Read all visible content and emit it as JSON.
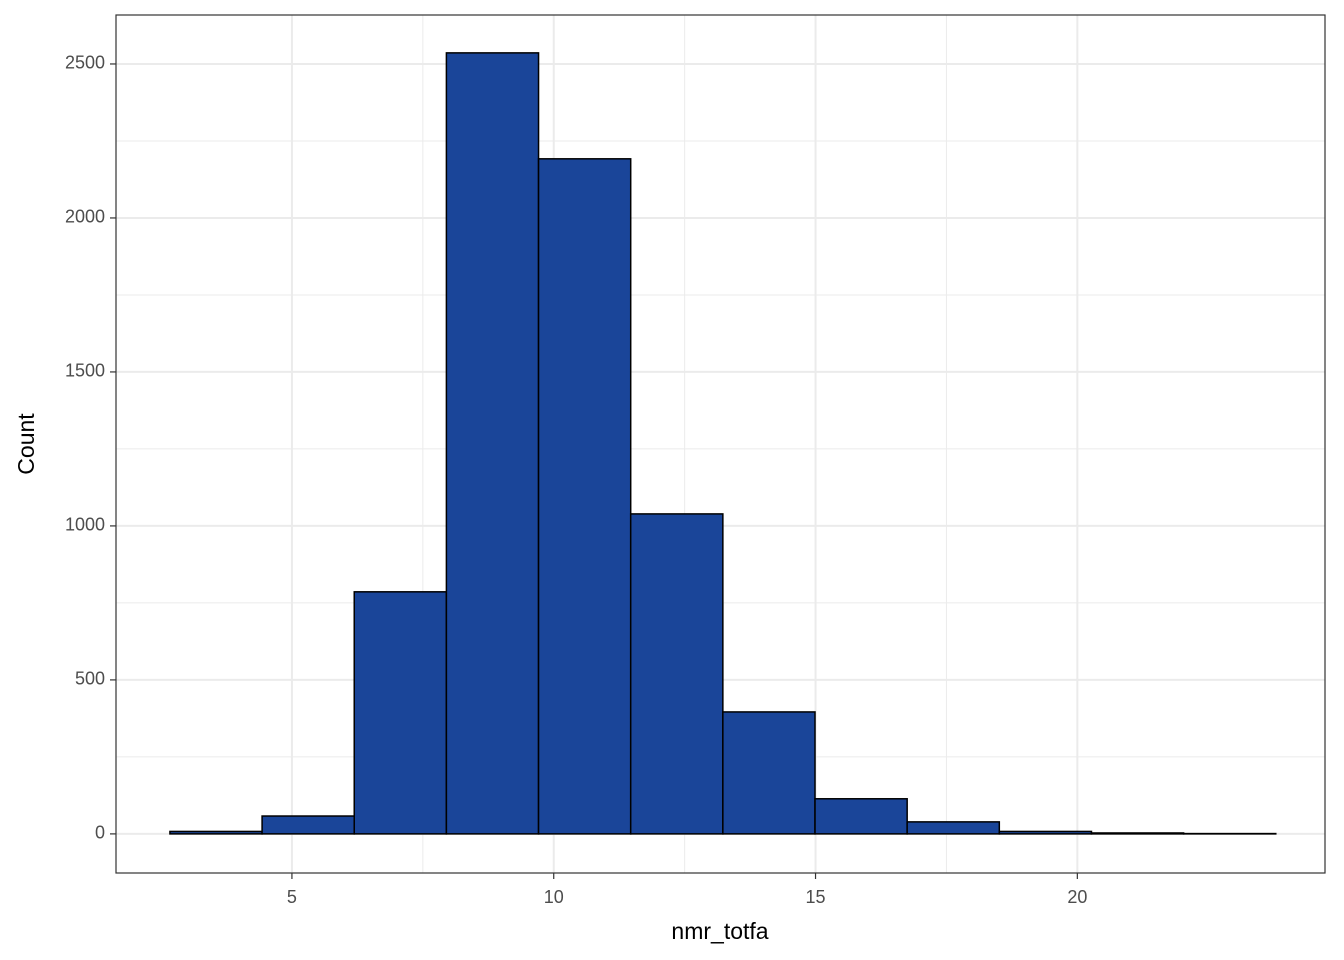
{
  "chart_data": {
    "type": "histogram",
    "x_label": "nmr_totfa",
    "y_label": "Count",
    "bins": [
      2.67,
      4.43,
      6.19,
      7.95,
      9.71,
      11.47,
      13.23,
      14.99,
      16.75,
      18.51,
      20.27,
      22.03,
      23.79
    ],
    "values": [
      8,
      58,
      786,
      2536,
      2192,
      1039,
      396,
      114,
      39,
      8,
      3,
      1
    ],
    "color": "#1a4599",
    "edge_color": "#000000",
    "xlim": [
      1.64,
      24.73
    ],
    "ylim": [
      -127,
      2659
    ],
    "xticks": [
      5,
      10,
      15,
      20
    ],
    "yticks": [
      0,
      500,
      1000,
      1500,
      2000,
      2500
    ],
    "grid": true
  }
}
